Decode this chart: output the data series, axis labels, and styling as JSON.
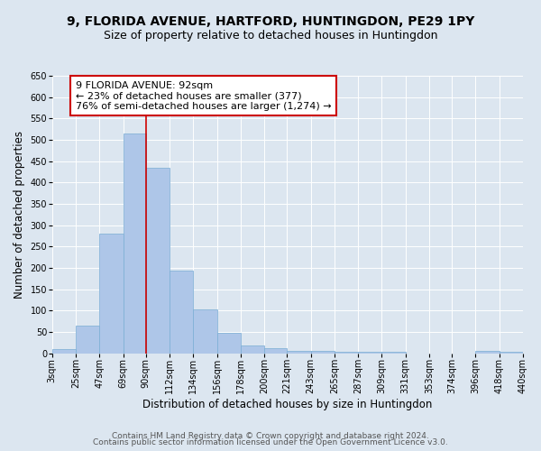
{
  "title": "9, FLORIDA AVENUE, HARTFORD, HUNTINGDON, PE29 1PY",
  "subtitle": "Size of property relative to detached houses in Huntingdon",
  "xlabel": "Distribution of detached houses by size in Huntingdon",
  "ylabel": "Number of detached properties",
  "footer_line1": "Contains HM Land Registry data © Crown copyright and database right 2024.",
  "footer_line2": "Contains public sector information licensed under the Open Government Licence v3.0.",
  "bin_edges": [
    3,
    25,
    47,
    69,
    90,
    112,
    134,
    156,
    178,
    200,
    221,
    243,
    265,
    287,
    309,
    331,
    353,
    374,
    396,
    418,
    440
  ],
  "bin_labels": [
    "3sqm",
    "25sqm",
    "47sqm",
    "69sqm",
    "90sqm",
    "112sqm",
    "134sqm",
    "156sqm",
    "178sqm",
    "200sqm",
    "221sqm",
    "243sqm",
    "265sqm",
    "287sqm",
    "309sqm",
    "331sqm",
    "353sqm",
    "374sqm",
    "396sqm",
    "418sqm",
    "440sqm"
  ],
  "counts": [
    10,
    65,
    280,
    515,
    435,
    193,
    102,
    47,
    18,
    11,
    5,
    5,
    4,
    4,
    4,
    0,
    0,
    0,
    5,
    4
  ],
  "bar_color": "#aec6e8",
  "bar_edge_color": "#7aadd4",
  "red_line_x": 90,
  "annotation_title": "9 FLORIDA AVENUE: 92sqm",
  "annotation_line1": "← 23% of detached houses are smaller (377)",
  "annotation_line2": "76% of semi-detached houses are larger (1,274) →",
  "annotation_box_color": "#ffffff",
  "annotation_box_edge": "#cc0000",
  "red_line_color": "#cc0000",
  "ylim": [
    0,
    650
  ],
  "yticks": [
    0,
    50,
    100,
    150,
    200,
    250,
    300,
    350,
    400,
    450,
    500,
    550,
    600,
    650
  ],
  "background_color": "#dce6f0",
  "plot_bg_color": "#dce6f0",
  "grid_color": "#ffffff",
  "title_fontsize": 10,
  "subtitle_fontsize": 9,
  "axis_label_fontsize": 8.5,
  "tick_fontsize": 7,
  "footer_fontsize": 6.5
}
